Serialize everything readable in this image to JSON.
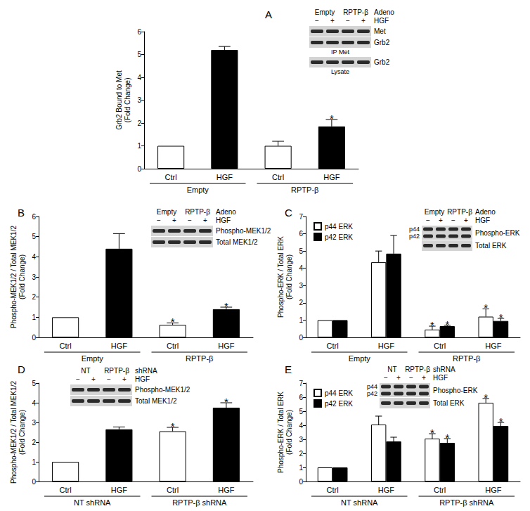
{
  "chart_data": [
    {
      "type": "bar",
      "title": "A",
      "y_label": "Grb2 Bound to Met\n(Fold Change)",
      "categories": [
        "Ctrl",
        "HGF",
        "Ctrl",
        "HGF"
      ],
      "groups": [
        "Empty",
        "RPTP-β"
      ],
      "values": [
        1,
        5.2,
        1.0,
        1.85
      ],
      "errors": [
        0,
        0.15,
        0.2,
        0.3
      ],
      "value_annotations": [
        null,
        null,
        null,
        "*"
      ],
      "colors": [
        "#ffffff",
        "#000000",
        "#ffffff",
        "#000000"
      ],
      "ylim": [
        0,
        6
      ],
      "yticks": [
        0,
        1,
        2,
        3,
        4,
        5,
        6
      ],
      "grid": false,
      "inset": {
        "group_labels": [
          "Empty",
          "RPTP-β"
        ],
        "group_title": "Adeno",
        "treatment": "HGF",
        "signs": [
          "−",
          "+",
          "−",
          "+"
        ],
        "rows": [
          {
            "label": "Met"
          },
          {
            "label": "Grb2",
            "caption": "IP Met"
          },
          {
            "label": "Grb2",
            "caption": "Lysate"
          }
        ]
      }
    },
    {
      "type": "bar",
      "title": "B",
      "y_label": "Phospho-MEK1/2 / Total MEK1/2\n(Fold Change)",
      "categories": [
        "Ctrl",
        "HGF",
        "Ctrl",
        "HGF"
      ],
      "groups": [
        "Empty",
        "RPTP-β"
      ],
      "values": [
        1,
        4.4,
        0.62,
        1.4
      ],
      "errors": [
        0,
        0.75,
        0.1,
        0.1
      ],
      "value_annotations": [
        null,
        null,
        "*",
        "*"
      ],
      "colors": [
        "#ffffff",
        "#000000",
        "#ffffff",
        "#000000"
      ],
      "ylim": [
        0,
        6
      ],
      "yticks": [
        0,
        1,
        2,
        3,
        4,
        5,
        6
      ],
      "grid": false,
      "inset": {
        "group_labels": [
          "Empty",
          "RPTP-β"
        ],
        "group_title": "Adeno",
        "treatment": "HGF",
        "signs": [
          "−",
          "+",
          "−",
          "+"
        ],
        "rows": [
          {
            "label": "Phospho-MEK1/2"
          },
          {
            "label": "Total MEK1/2"
          }
        ]
      }
    },
    {
      "type": "bar",
      "title": "C",
      "y_label": "Phospho-ERK / Total ERK\n(Fold Change)",
      "categories": [
        "Ctrl",
        "HGF",
        "Ctrl",
        "HGF"
      ],
      "groups": [
        "Empty",
        "RPTP-β"
      ],
      "series": [
        {
          "name": "p44 ERK",
          "color": "#ffffff",
          "values": [
            1,
            4.35,
            0.45,
            1.2
          ],
          "errors": [
            0,
            0.65,
            0.2,
            0.45
          ],
          "value_annotations": [
            null,
            null,
            "*",
            "*"
          ]
        },
        {
          "name": "p42 ERK",
          "color": "#000000",
          "values": [
            1,
            4.85,
            0.65,
            0.95
          ],
          "errors": [
            0,
            1.05,
            0.05,
            0.15
          ],
          "value_annotations": [
            null,
            null,
            "*",
            "*"
          ]
        }
      ],
      "legend": "upper left",
      "ylim": [
        0,
        7
      ],
      "yticks": [
        0,
        1,
        2,
        3,
        4,
        5,
        6,
        7
      ],
      "grid": false,
      "inset": {
        "group_labels": [
          "Empty",
          "RPTP-β"
        ],
        "group_title": "Adeno",
        "treatment": "HGF",
        "signs": [
          "−",
          "+",
          "−",
          "+"
        ],
        "rows": [
          {
            "label": "Phospho-ERK",
            "side_labels": [
              "p44",
              "p42"
            ]
          },
          {
            "label": "Total ERK"
          }
        ]
      }
    },
    {
      "type": "bar",
      "title": "D",
      "y_label": "Phospho-MEK1/2 / Total MEK1/2\n(Fold Change)",
      "categories": [
        "Ctrl",
        "HGF",
        "Ctrl",
        "HGF"
      ],
      "groups": [
        "NT shRNA",
        "RPTP-β shRNA"
      ],
      "values": [
        1,
        2.65,
        2.55,
        3.75
      ],
      "errors": [
        0,
        0.12,
        0.2,
        0.25
      ],
      "value_annotations": [
        null,
        null,
        "*",
        "*"
      ],
      "colors": [
        "#ffffff",
        "#000000",
        "#ffffff",
        "#000000"
      ],
      "ylim": [
        0,
        5
      ],
      "yticks": [
        0,
        1,
        2,
        3,
        4,
        5
      ],
      "grid": false,
      "inset": {
        "group_labels": [
          "NT",
          "RPTP-β"
        ],
        "group_title": "shRNA",
        "treatment": "HGF",
        "signs": [
          "−",
          "+",
          "−",
          "+"
        ],
        "rows": [
          {
            "label": "Phospho-MEK1/2"
          },
          {
            "label": "Total MEK1/2"
          }
        ]
      }
    },
    {
      "type": "bar",
      "title": "E",
      "y_label": "Phospho-ERK / Total ERK\n(Fold Change)",
      "categories": [
        "Ctrl",
        "HGF",
        "Ctrl",
        "HGF"
      ],
      "groups": [
        "NT shRNA",
        "RPTP-β shRNA"
      ],
      "series": [
        {
          "name": "p44 ERK",
          "color": "#ffffff",
          "values": [
            1,
            4.05,
            3.05,
            5.6
          ],
          "errors": [
            0,
            0.6,
            0.35,
            0.3
          ],
          "value_annotations": [
            null,
            null,
            "*",
            "*"
          ]
        },
        {
          "name": "p42 ERK",
          "color": "#000000",
          "values": [
            1,
            2.85,
            2.75,
            3.95
          ],
          "errors": [
            0,
            0.3,
            0.3,
            0.25
          ],
          "value_annotations": [
            null,
            null,
            "*",
            "*"
          ]
        }
      ],
      "legend": "upper left",
      "ylim": [
        0,
        7
      ],
      "yticks": [
        0,
        1,
        2,
        3,
        4,
        5,
        6,
        7
      ],
      "grid": false,
      "inset": {
        "group_labels": [
          "NT",
          "RPTP-β"
        ],
        "group_title": "shRNA",
        "treatment": "HGF",
        "signs": [
          "−",
          "+",
          "−",
          "+"
        ],
        "rows": [
          {
            "label": "Phospho-ERK",
            "side_labels": [
              "p44",
              "p42"
            ]
          },
          {
            "label": "Total ERK"
          }
        ]
      }
    }
  ]
}
